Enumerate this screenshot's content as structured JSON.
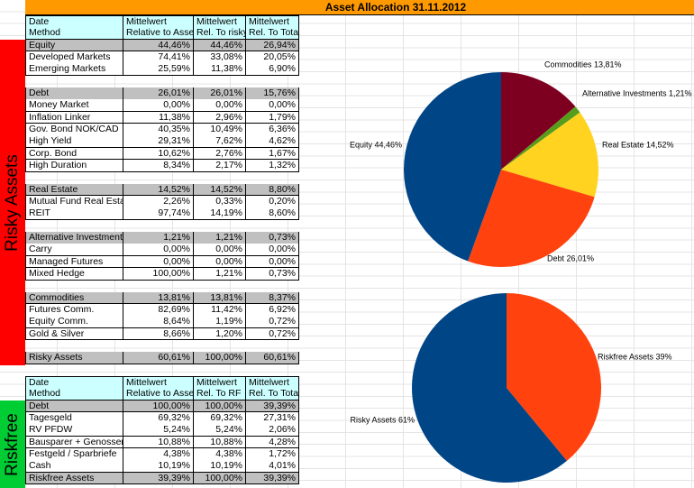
{
  "title": "Asset Allocation 31.11.2012",
  "side_labels": [
    "Risky Assets",
    "Riskfree"
  ],
  "tables": [
    {
      "rows": [
        [
          "Date",
          "Mittelwert",
          "Mittelwert",
          "Mittelwert"
        ],
        [
          "Method",
          "Relative to Asset",
          "Rel. To risky",
          "Rel. To Total"
        ],
        [
          "Equity",
          "44,46%",
          "44,46%",
          "26,94%"
        ],
        [
          "Developed Markets",
          "74,41%",
          "33,08%",
          "20,05%"
        ],
        [
          "Emerging Markets",
          "25,59%",
          "11,38%",
          "6,90%"
        ],
        [
          "Debt",
          "26,01%",
          "26,01%",
          "15,76%"
        ],
        [
          "Money Market",
          "0,00%",
          "0,00%",
          "0,00%"
        ],
        [
          "Inflation Linker",
          "11,38%",
          "2,96%",
          "1,79%"
        ],
        [
          "Gov. Bond NOK/CAD",
          "40,35%",
          "10,49%",
          "6,36%"
        ],
        [
          "High Yield",
          "29,31%",
          "7,62%",
          "4,62%"
        ],
        [
          "Corp. Bond",
          "10,62%",
          "2,76%",
          "1,67%"
        ],
        [
          "High Duration",
          "8,34%",
          "2,17%",
          "1,32%"
        ],
        [
          "Real Estate",
          "14,52%",
          "14,52%",
          "8,80%"
        ],
        [
          "Mutual Fund Real Estate",
          "2,26%",
          "0,33%",
          "0,20%"
        ],
        [
          "REIT",
          "97,74%",
          "14,19%",
          "8,60%"
        ],
        [
          "Alternative Investments",
          "1,21%",
          "1,21%",
          "0,73%"
        ],
        [
          "Carry",
          "0,00%",
          "0,00%",
          "0,00%"
        ],
        [
          "Managed Futures",
          "0,00%",
          "0,00%",
          "0,00%"
        ],
        [
          "Mixed Hedge",
          "100,00%",
          "1,21%",
          "0,73%"
        ],
        [
          "Commodities",
          "13,81%",
          "13,81%",
          "8,37%"
        ],
        [
          "Futures Comm.",
          "82,69%",
          "11,42%",
          "6,92%"
        ],
        [
          "Equity Comm.",
          "8,64%",
          "1,19%",
          "0,72%"
        ],
        [
          "Gold & Silver",
          "8,66%",
          "1,20%",
          "0,72%"
        ],
        [
          "Risky Assets",
          "60,61%",
          "100,00%",
          "60,61%"
        ]
      ]
    },
    {
      "rows": [
        [
          "Date",
          "Mittelwert",
          "Mittelwert",
          "Mittelwert"
        ],
        [
          "Method",
          "Relative to Asset",
          "Rel. To RF",
          "Rel. To Total"
        ],
        [
          "Debt",
          "100,00%",
          "100,00%",
          "39,39%"
        ],
        [
          "Tagesgeld",
          "69,32%",
          "69,32%",
          "27,31%"
        ],
        [
          "RV PFDW",
          "5,24%",
          "5,24%",
          "2,06%"
        ],
        [
          "Bausparer + Genossen",
          "10,88%",
          "10,88%",
          "4,28%"
        ],
        [
          "Festgeld / Sparbriefe",
          "4,38%",
          "4,38%",
          "1,72%"
        ],
        [
          "Cash",
          "10,19%",
          "10,19%",
          "4,01%"
        ],
        [
          "Riskfree Assets",
          "39,39%",
          "100,00%",
          "39,39%"
        ]
      ]
    }
  ],
  "chart_data": [
    {
      "type": "pie",
      "values": [
        13.81,
        1.21,
        14.52,
        26.01,
        44.46
      ],
      "value_labels": [
        "Commodities 13,81%",
        "Alternative Investments 1,21%",
        "Real Estate 14,52%",
        "Debt 26,01%",
        "Equity 44,46%"
      ],
      "colors": [
        "#7e0021",
        "#579d1c",
        "#ffd320",
        "#ff420e",
        "#004586"
      ]
    },
    {
      "type": "pie",
      "values": [
        39,
        61
      ],
      "value_labels": [
        "Riskfree Assets 39%",
        "Risky Assets 61%"
      ],
      "colors": [
        "#ff420e",
        "#004586"
      ]
    }
  ]
}
